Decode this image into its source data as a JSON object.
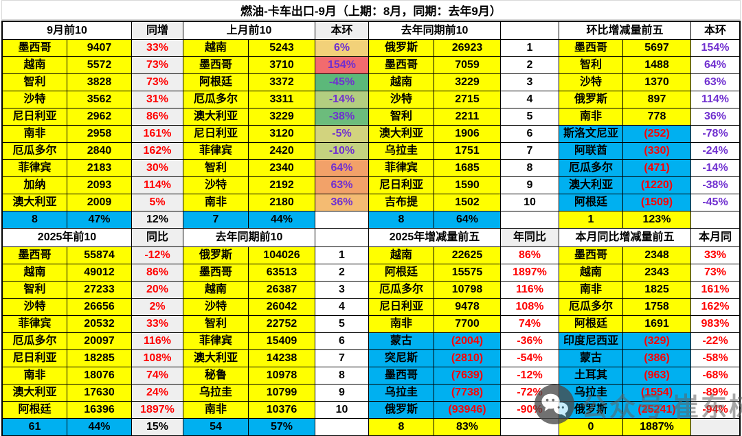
{
  "title": "燃油-卡车出口-9月（上期：8月，同期：去年9月）",
  "colors": {
    "yellow": "#FFFF00",
    "blue": "#00B0F0",
    "red": "#FF0000",
    "purple": "#7030D0",
    "black": "#000000",
    "gray": "#EFEFEF",
    "white": "#FFFFFF"
  },
  "watermark": {
    "icon": "wechat-logo-icon",
    "text1": "公众号",
    "text2": "崔东树"
  },
  "top_blocks": [
    {
      "title": "9月前10",
      "aux": "同增",
      "aux_bg": "#EFEFEF",
      "pct_style": "red",
      "pct_bg": "#EFEFEF",
      "summary": [
        "8",
        "47%",
        "12%"
      ],
      "summary_bg": "#00B0F0",
      "summary3_bg": "#EFEFEF",
      "rows": [
        [
          "墨西哥",
          "9407",
          "33%"
        ],
        [
          "越南",
          "5572",
          "73%"
        ],
        [
          "智利",
          "3828",
          "73%"
        ],
        [
          "沙特",
          "3562",
          "31%"
        ],
        [
          "尼日利亚",
          "2962",
          "86%"
        ],
        [
          "南非",
          "2958",
          "161%"
        ],
        [
          "厄瓜多尔",
          "2840",
          "162%"
        ],
        [
          "菲律宾",
          "2183",
          "30%"
        ],
        [
          "加纳",
          "2093",
          "114%"
        ],
        [
          "澳大利亚",
          "2009",
          "5%"
        ]
      ]
    },
    {
      "title": "上月前10",
      "aux": "本环",
      "aux_bg": "#EFEFEF",
      "pct_style": "scale",
      "pct_bg": "#FFFFFF",
      "summary": [
        "7",
        "44%",
        ""
      ],
      "summary_bg": "#00B0F0",
      "summary3_bg": "#FFFFFF",
      "rows": [
        [
          "越南",
          "5243",
          "6%",
          "#F2D179"
        ],
        [
          "墨西哥",
          "3710",
          "154%",
          "#F26B6E"
        ],
        [
          "阿根廷",
          "3372",
          "-45%",
          "#5CB87A"
        ],
        [
          "厄瓜多尔",
          "3311",
          "-14%",
          "#B3CE80"
        ],
        [
          "澳大利亚",
          "3229",
          "-38%",
          "#6CBC7C"
        ],
        [
          "尼日利亚",
          "3120",
          "-5%",
          "#D2D37E"
        ],
        [
          "菲律宾",
          "2420",
          "-10%",
          "#C4D27F"
        ],
        [
          "智利",
          "2340",
          "64%",
          "#F2A169"
        ],
        [
          "沙特",
          "2192",
          "63%",
          "#F2A269"
        ],
        [
          "南非",
          "2180",
          "36%",
          "#F4BB72"
        ]
      ]
    },
    {
      "title": "去年同期前10",
      "aux": "",
      "aux_bg": "#FFFFFF",
      "pct_style": "rank",
      "pct_bg": "#FFFFFF",
      "summary": [
        "8",
        "64%",
        ""
      ],
      "summary_bg": "#00B0F0",
      "summary3_bg": "#FFFFFF",
      "rows": [
        [
          "俄罗斯",
          "26923",
          "1"
        ],
        [
          "墨西哥",
          "7059",
          "2"
        ],
        [
          "越南",
          "3229",
          "3"
        ],
        [
          "沙特",
          "2715",
          "4"
        ],
        [
          "智利",
          "2211",
          "5"
        ],
        [
          "澳大利亚",
          "1906",
          "6"
        ],
        [
          "乌拉圭",
          "1751",
          "7"
        ],
        [
          "菲律宾",
          "1685",
          "8"
        ],
        [
          "尼日利亚",
          "1590",
          "9"
        ],
        [
          "吉布提",
          "1502",
          "10"
        ]
      ]
    },
    {
      "title": "环比增减量前五",
      "aux": "本环",
      "aux_bg": "#FFFFFF",
      "pct_style": "purple",
      "pct_bg": "#FFFFFF",
      "summary": [
        "1",
        "123%",
        ""
      ],
      "summary_bg": "#FFFF00",
      "summary3_bg": "#FFFFFF",
      "rows": [
        [
          "墨西哥",
          "5697",
          "154%"
        ],
        [
          "智利",
          "1488",
          "64%"
        ],
        [
          "沙特",
          "1370",
          "63%"
        ],
        [
          "俄罗斯",
          "897",
          "114%"
        ],
        [
          "南非",
          "778",
          "36%"
        ],
        [
          "斯洛文尼亚",
          "(252)",
          "-78%"
        ],
        [
          "阿联酋",
          "(330)",
          "-24%"
        ],
        [
          "厄瓜多尔",
          "(471)",
          "-14%"
        ],
        [
          "澳大利亚",
          "(1220)",
          "-38%"
        ],
        [
          "阿根廷",
          "(1509)",
          "-45%"
        ]
      ]
    }
  ],
  "bottom_blocks": [
    {
      "title": "2025年前10",
      "aux": "同比",
      "aux_bg": "#EFEFEF",
      "pct_style": "red",
      "pct_bg": "#EFEFEF",
      "summary": [
        "61",
        "44%",
        "15%"
      ],
      "summary_bg": "#00B0F0",
      "summary3_bg": "#EFEFEF",
      "rows": [
        [
          "墨西哥",
          "55874",
          "-12%"
        ],
        [
          "越南",
          "49012",
          "86%"
        ],
        [
          "智利",
          "27233",
          "20%"
        ],
        [
          "沙特",
          "26656",
          "2%"
        ],
        [
          "菲律宾",
          "20532",
          "33%"
        ],
        [
          "厄瓜多尔",
          "20097",
          "116%"
        ],
        [
          "尼日利亚",
          "18285",
          "108%"
        ],
        [
          "南非",
          "18076",
          "74%"
        ],
        [
          "澳大利亚",
          "17630",
          "24%"
        ],
        [
          "阿根廷",
          "16396",
          "1897%"
        ]
      ]
    },
    {
      "title": "去年同期前10",
      "aux": "",
      "aux_bg": "#FFFFFF",
      "pct_style": "rank",
      "pct_bg": "#FFFFFF",
      "summary": [
        "54",
        "57%",
        ""
      ],
      "summary_bg": "#00B0F0",
      "summary3_bg": "#FFFFFF",
      "rows": [
        [
          "俄罗斯",
          "104026",
          "1"
        ],
        [
          "墨西哥",
          "63513",
          "2"
        ],
        [
          "越南",
          "26387",
          "3"
        ],
        [
          "沙特",
          "26042",
          "4"
        ],
        [
          "智利",
          "22752",
          "5"
        ],
        [
          "菲律宾",
          "15409",
          "6"
        ],
        [
          "澳大利亚",
          "14238",
          "7"
        ],
        [
          "秘鲁",
          "10978",
          "8"
        ],
        [
          "乌拉圭",
          "10799",
          "9"
        ],
        [
          "南非",
          "10376",
          "10"
        ]
      ]
    },
    {
      "title": "2025年增减量前五",
      "aux": "年同比",
      "aux_bg": "#EFEFEF",
      "pct_style": "red",
      "pct_bg": "#FFFFFF",
      "summary": [
        "8",
        "83%",
        ""
      ],
      "summary_bg": "#FFFF00",
      "summary3_bg": "#FFFFFF",
      "rows": [
        [
          "越南",
          "22625",
          "86%"
        ],
        [
          "阿根廷",
          "15575",
          "1897%"
        ],
        [
          "厄瓜多尔",
          "10798",
          "116%"
        ],
        [
          "尼日利亚",
          "9478",
          "108%"
        ],
        [
          "南非",
          "7700",
          "74%"
        ],
        [
          "蒙古",
          "(2004)",
          "-36%"
        ],
        [
          "突尼斯",
          "(2810)",
          "-54%"
        ],
        [
          "墨西哥",
          "(7639)",
          "-12%"
        ],
        [
          "乌拉圭",
          "(7738)",
          "-72%"
        ],
        [
          "俄罗斯",
          "(93946)",
          "-90%"
        ]
      ]
    },
    {
      "title": "本月同比增减量前五",
      "aux": "本月同",
      "aux_bg": "#FFFFFF",
      "pct_style": "red",
      "pct_bg": "#FFFFFF",
      "summary": [
        "0",
        "1887%",
        ""
      ],
      "summary_bg": "#FFFF00",
      "summary3_bg": "#EFEFEF",
      "rows": [
        [
          "墨西哥",
          "2348",
          "33%"
        ],
        [
          "越南",
          "2343",
          "73%"
        ],
        [
          "南非",
          "1825",
          "161%"
        ],
        [
          "厄瓜多尔",
          "1758",
          "162%"
        ],
        [
          "阿根廷",
          "1691",
          "983%"
        ],
        [
          "印度尼西亚",
          "(329)",
          "-22%"
        ],
        [
          "蒙古",
          "(386)",
          "-58%"
        ],
        [
          "土耳其",
          "(963)",
          "-68%"
        ],
        [
          "乌拉圭",
          "(1554)",
          "-89%"
        ],
        [
          "俄罗斯",
          "(25241)",
          "-94%"
        ]
      ]
    }
  ]
}
